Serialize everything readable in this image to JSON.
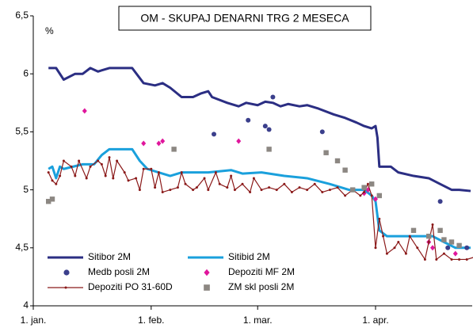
{
  "chart_data": {
    "type": "line",
    "title": "OM - SKUPAJ DENARNI TRG 2 MESECA",
    "y_label": "%",
    "xlim": [
      0,
      116
    ],
    "xticks": [
      {
        "value": 0,
        "label": "1. jan."
      },
      {
        "value": 31,
        "label": "1. feb."
      },
      {
        "value": 59,
        "label": "1. mar."
      },
      {
        "value": 90,
        "label": "1. apr."
      }
    ],
    "ylim": [
      4,
      6.5
    ],
    "yticks": [
      4,
      {
        "value": 4.5,
        "label": "4,5"
      },
      5,
      {
        "value": 5.5,
        "label": "5,5"
      },
      6,
      {
        "value": 6.5,
        "label": "6,5"
      }
    ],
    "grid": false,
    "series": [
      {
        "name": "Sitibor 2M",
        "type": "line",
        "marker": "none",
        "color": "#2b2e83",
        "x": [
          4,
          6,
          8,
          11,
          13,
          15,
          17,
          20,
          26,
          29,
          32,
          34,
          36,
          39,
          42,
          44,
          46,
          47,
          51,
          54,
          56,
          59,
          61,
          63,
          65,
          67,
          70,
          72,
          75,
          79,
          82,
          85,
          87,
          89,
          90,
          90.5,
          91,
          94,
          96,
          100,
          104,
          107,
          110,
          112,
          115
        ],
        "values": [
          6.05,
          6.05,
          5.95,
          6.0,
          6.0,
          6.05,
          6.02,
          6.05,
          6.05,
          5.92,
          5.9,
          5.92,
          5.88,
          5.8,
          5.8,
          5.83,
          5.85,
          5.8,
          5.75,
          5.72,
          5.75,
          5.73,
          5.76,
          5.75,
          5.72,
          5.74,
          5.72,
          5.73,
          5.7,
          5.65,
          5.62,
          5.58,
          5.55,
          5.53,
          5.55,
          5.45,
          5.2,
          5.2,
          5.15,
          5.12,
          5.1,
          5.05,
          5.0,
          5.0,
          4.99
        ]
      },
      {
        "name": "Sitibid 2M",
        "type": "line",
        "marker": "none",
        "color": "#1aa0dc",
        "x": [
          4,
          5,
          6,
          7,
          8,
          13,
          16,
          18,
          20,
          26,
          28,
          30,
          33,
          36,
          39,
          46,
          52,
          55,
          60,
          66,
          72,
          78,
          83,
          87,
          89,
          90,
          91,
          93,
          100,
          105,
          108,
          111,
          115
        ],
        "values": [
          5.18,
          5.2,
          5.1,
          5.2,
          5.18,
          5.22,
          5.22,
          5.3,
          5.35,
          5.35,
          5.25,
          5.18,
          5.15,
          5.12,
          5.15,
          5.15,
          5.17,
          5.14,
          5.15,
          5.12,
          5.1,
          5.05,
          5.0,
          5.0,
          4.95,
          4.9,
          4.65,
          4.6,
          4.6,
          4.6,
          4.55,
          4.5,
          4.5
        ]
      },
      {
        "name": "Medb posli 2M",
        "type": "scatter",
        "marker": "circle",
        "color": "#3b3f8c",
        "x": [
          47.5,
          56.5,
          61,
          62,
          63,
          76,
          107,
          109,
          114
        ],
        "values": [
          5.48,
          5.6,
          5.55,
          5.52,
          5.8,
          5.5,
          4.9,
          4.5,
          4.5
        ]
      },
      {
        "name": "Depoziti MF 2M",
        "type": "scatter",
        "marker": "diamond",
        "color": "#e0169c",
        "x": [
          13.5,
          29,
          33,
          34,
          54,
          87,
          88,
          90,
          104,
          105,
          111
        ],
        "values": [
          5.68,
          5.4,
          5.4,
          5.42,
          5.42,
          4.97,
          5.0,
          4.92,
          4.55,
          4.5,
          4.45
        ]
      },
      {
        "name": "Depoziti PO 31-60D",
        "type": "line",
        "marker": "dot",
        "color": "#8b1a1a",
        "x": [
          4,
          5,
          6,
          7,
          8,
          10,
          11,
          12,
          14,
          15,
          17,
          18,
          19,
          20,
          21,
          22,
          24,
          25,
          27,
          28,
          29,
          31,
          32,
          33,
          34,
          36,
          38,
          39,
          40,
          42,
          43,
          45,
          46,
          48,
          49,
          51,
          52,
          53,
          55,
          57,
          58,
          60,
          62,
          64,
          66,
          68,
          70,
          72,
          74,
          76,
          78,
          80,
          82,
          84,
          86,
          87,
          88,
          89,
          90,
          91,
          92,
          93,
          95,
          96,
          98,
          99,
          101,
          103,
          104,
          105,
          106,
          108,
          110,
          112,
          114,
          116
        ],
        "values": [
          5.15,
          5.08,
          5.05,
          5.12,
          5.25,
          5.2,
          5.12,
          5.25,
          5.1,
          5.2,
          5.25,
          5.22,
          5.12,
          5.28,
          5.1,
          5.25,
          5.15,
          5.08,
          5.1,
          5.0,
          5.18,
          5.18,
          5.02,
          5.15,
          4.98,
          5.0,
          5.02,
          5.15,
          5.05,
          5.0,
          5.02,
          5.1,
          5.0,
          5.15,
          5.05,
          5.02,
          5.12,
          5.0,
          5.05,
          4.98,
          5.1,
          5.0,
          5.02,
          5.0,
          5.05,
          4.98,
          5.02,
          5.0,
          5.05,
          4.98,
          5.0,
          5.02,
          4.95,
          5.0,
          4.95,
          4.98,
          5.05,
          4.95,
          4.5,
          4.75,
          4.6,
          4.45,
          4.5,
          4.55,
          4.45,
          4.6,
          4.5,
          4.4,
          4.55,
          4.7,
          4.4,
          4.45,
          4.4,
          4.4,
          4.4,
          4.42
        ]
      },
      {
        "name": "ZM skl posli 2M",
        "type": "scatter",
        "marker": "square",
        "color": "#8c8782",
        "x": [
          4,
          5,
          37,
          62,
          77,
          80,
          82,
          84,
          87,
          89,
          91,
          100,
          104,
          107,
          108,
          110,
          112
        ],
        "values": [
          4.9,
          4.92,
          5.35,
          5.35,
          5.32,
          5.25,
          5.17,
          5.0,
          5.02,
          5.05,
          4.95,
          4.65,
          4.6,
          4.65,
          4.57,
          4.55,
          4.52
        ]
      }
    ]
  }
}
